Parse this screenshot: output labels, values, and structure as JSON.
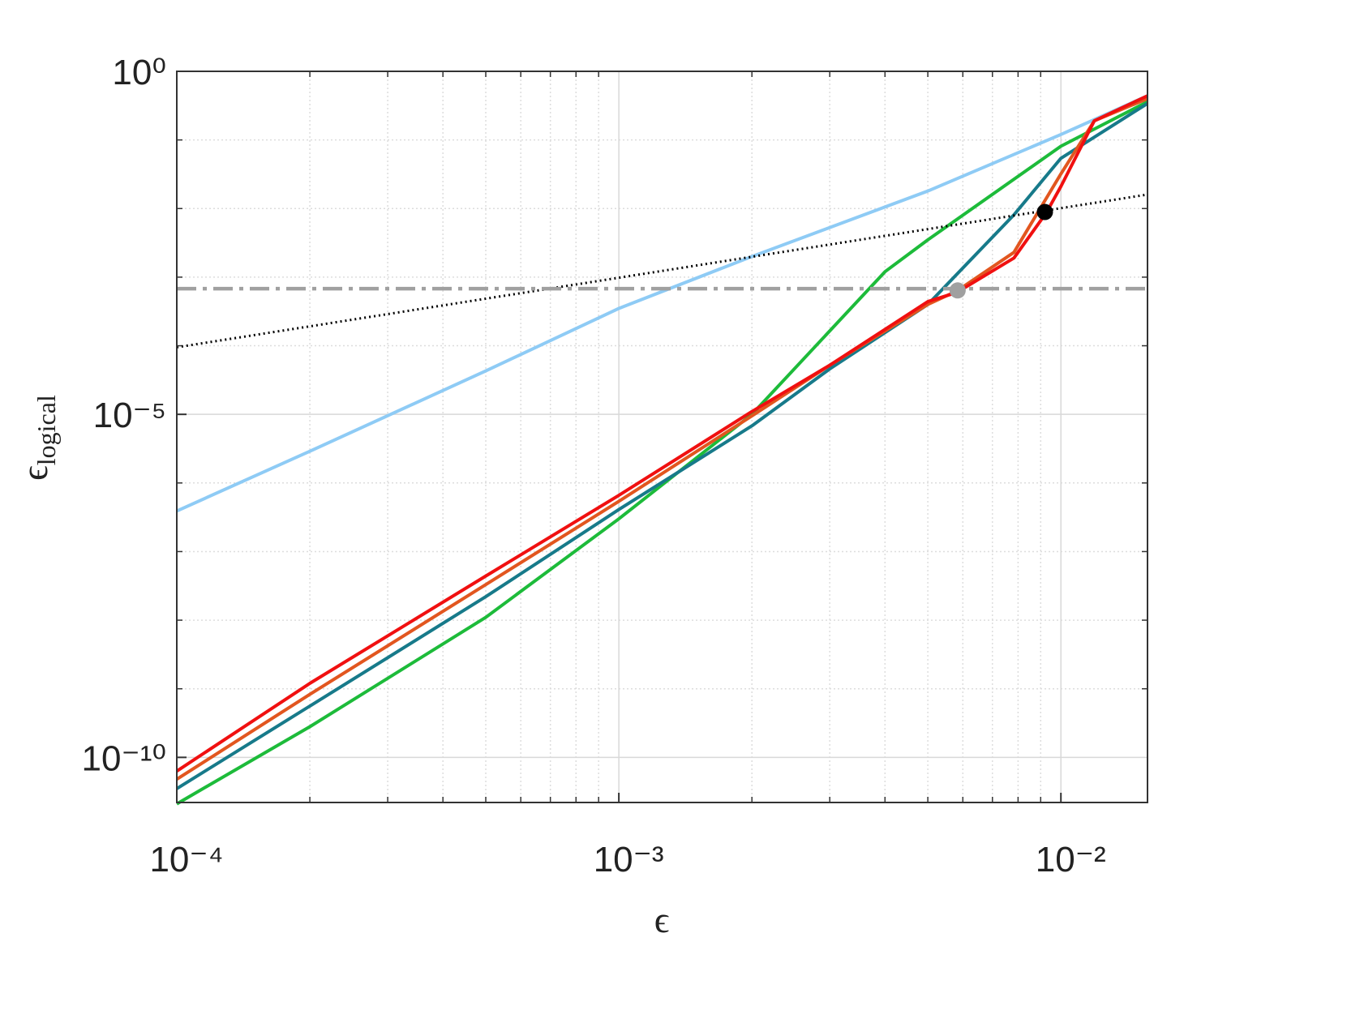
{
  "chart_data": {
    "type": "line",
    "xlabel": "ϵ",
    "ylabel": {
      "symbol": "ϵ",
      "subscript": "logical"
    },
    "xscale": "log",
    "yscale": "log",
    "xlim": [
      0.0001,
      0.0157
    ],
    "ylim": [
      2.2e-11,
      1
    ],
    "xticks": [
      {
        "value": 0.0001,
        "label": "10⁻⁴"
      },
      {
        "value": 0.001,
        "label": "10⁻³"
      },
      {
        "value": 0.01,
        "label": "10⁻²"
      }
    ],
    "yticks": [
      {
        "value": 1e-10,
        "label": "10⁻¹⁰"
      },
      {
        "value": 1e-05,
        "label": "10⁻⁵"
      },
      {
        "value": 1,
        "label": "10⁰"
      }
    ],
    "xminorticks": [
      0.0002,
      0.0003,
      0.0004,
      0.0005,
      0.0006,
      0.0007,
      0.0008,
      0.0009,
      0.002,
      0.003,
      0.004,
      0.005,
      0.006,
      0.007,
      0.008,
      0.009
    ],
    "yminorticks": [
      1e-09,
      1e-08,
      1e-07,
      1e-06,
      0.0001,
      0.001,
      0.01,
      0.1
    ],
    "grid": true,
    "series": [
      {
        "color": "#8ecbf5",
        "style": "solid",
        "x": [
          0.0001,
          0.0002,
          0.0005,
          0.001,
          0.002,
          0.005,
          0.01,
          0.0157
        ],
        "values": [
          3.9e-07,
          2.9e-06,
          4.3e-05,
          0.00035,
          0.002,
          0.018,
          0.12,
          0.44
        ]
      },
      {
        "color": "#1dbb3a",
        "style": "solid",
        "x": [
          0.0001,
          0.0002,
          0.0005,
          0.001,
          0.002,
          0.004,
          0.005,
          0.01,
          0.0157
        ],
        "values": [
          2.1e-11,
          2.8e-10,
          1.1e-08,
          3e-07,
          1e-05,
          0.0012,
          0.0035,
          0.081,
          0.36
        ]
      },
      {
        "color": "#177a8a",
        "style": "solid",
        "x": [
          0.0001,
          0.0002,
          0.0005,
          0.001,
          0.002,
          0.003,
          0.005,
          0.00783,
          0.01,
          0.0157
        ],
        "values": [
          3.5e-11,
          5.6e-10,
          2.2e-08,
          4.1e-07,
          6.8e-06,
          4.6e-05,
          0.0004,
          0.0081,
          0.054,
          0.34
        ]
      },
      {
        "color": "#e2561f",
        "style": "solid",
        "x": [
          0.0001,
          0.0002,
          0.0005,
          0.001,
          0.002,
          0.003,
          0.005,
          0.00582,
          0.00783,
          0.01,
          0.0119,
          0.0157
        ],
        "values": [
          4.8e-11,
          8.3e-10,
          3.3e-08,
          5.4e-07,
          9.5e-06,
          5.2e-05,
          0.0004,
          0.00063,
          0.0023,
          0.032,
          0.19,
          0.4
        ]
      },
      {
        "color": "#f01010",
        "style": "solid",
        "x": [
          0.0001,
          0.0002,
          0.0005,
          0.001,
          0.002,
          0.003,
          0.005,
          0.00582,
          0.00783,
          0.00927,
          0.01,
          0.0119,
          0.0157
        ],
        "values": [
          6.3e-11,
          1.2e-09,
          4.4e-08,
          6.6e-07,
          1.1e-05,
          5.2e-05,
          0.00044,
          0.0006,
          0.0019,
          0.0087,
          0.021,
          0.19,
          0.44
        ]
      },
      {
        "color": "#000000",
        "style": "dotted",
        "x": [
          0.0001,
          0.0157
        ],
        "values": [
          9.5e-05,
          0.016
        ]
      },
      {
        "color": "#a0a0a0",
        "style": "dashdot",
        "x": [
          0.0001,
          0.0157
        ],
        "values": [
          0.00068,
          0.00068
        ]
      }
    ],
    "points": [
      {
        "color": "#a0a0a0",
        "x": 0.00584,
        "y": 0.00064
      },
      {
        "color": "#000000",
        "x": 0.0092,
        "y": 0.0089
      }
    ]
  }
}
